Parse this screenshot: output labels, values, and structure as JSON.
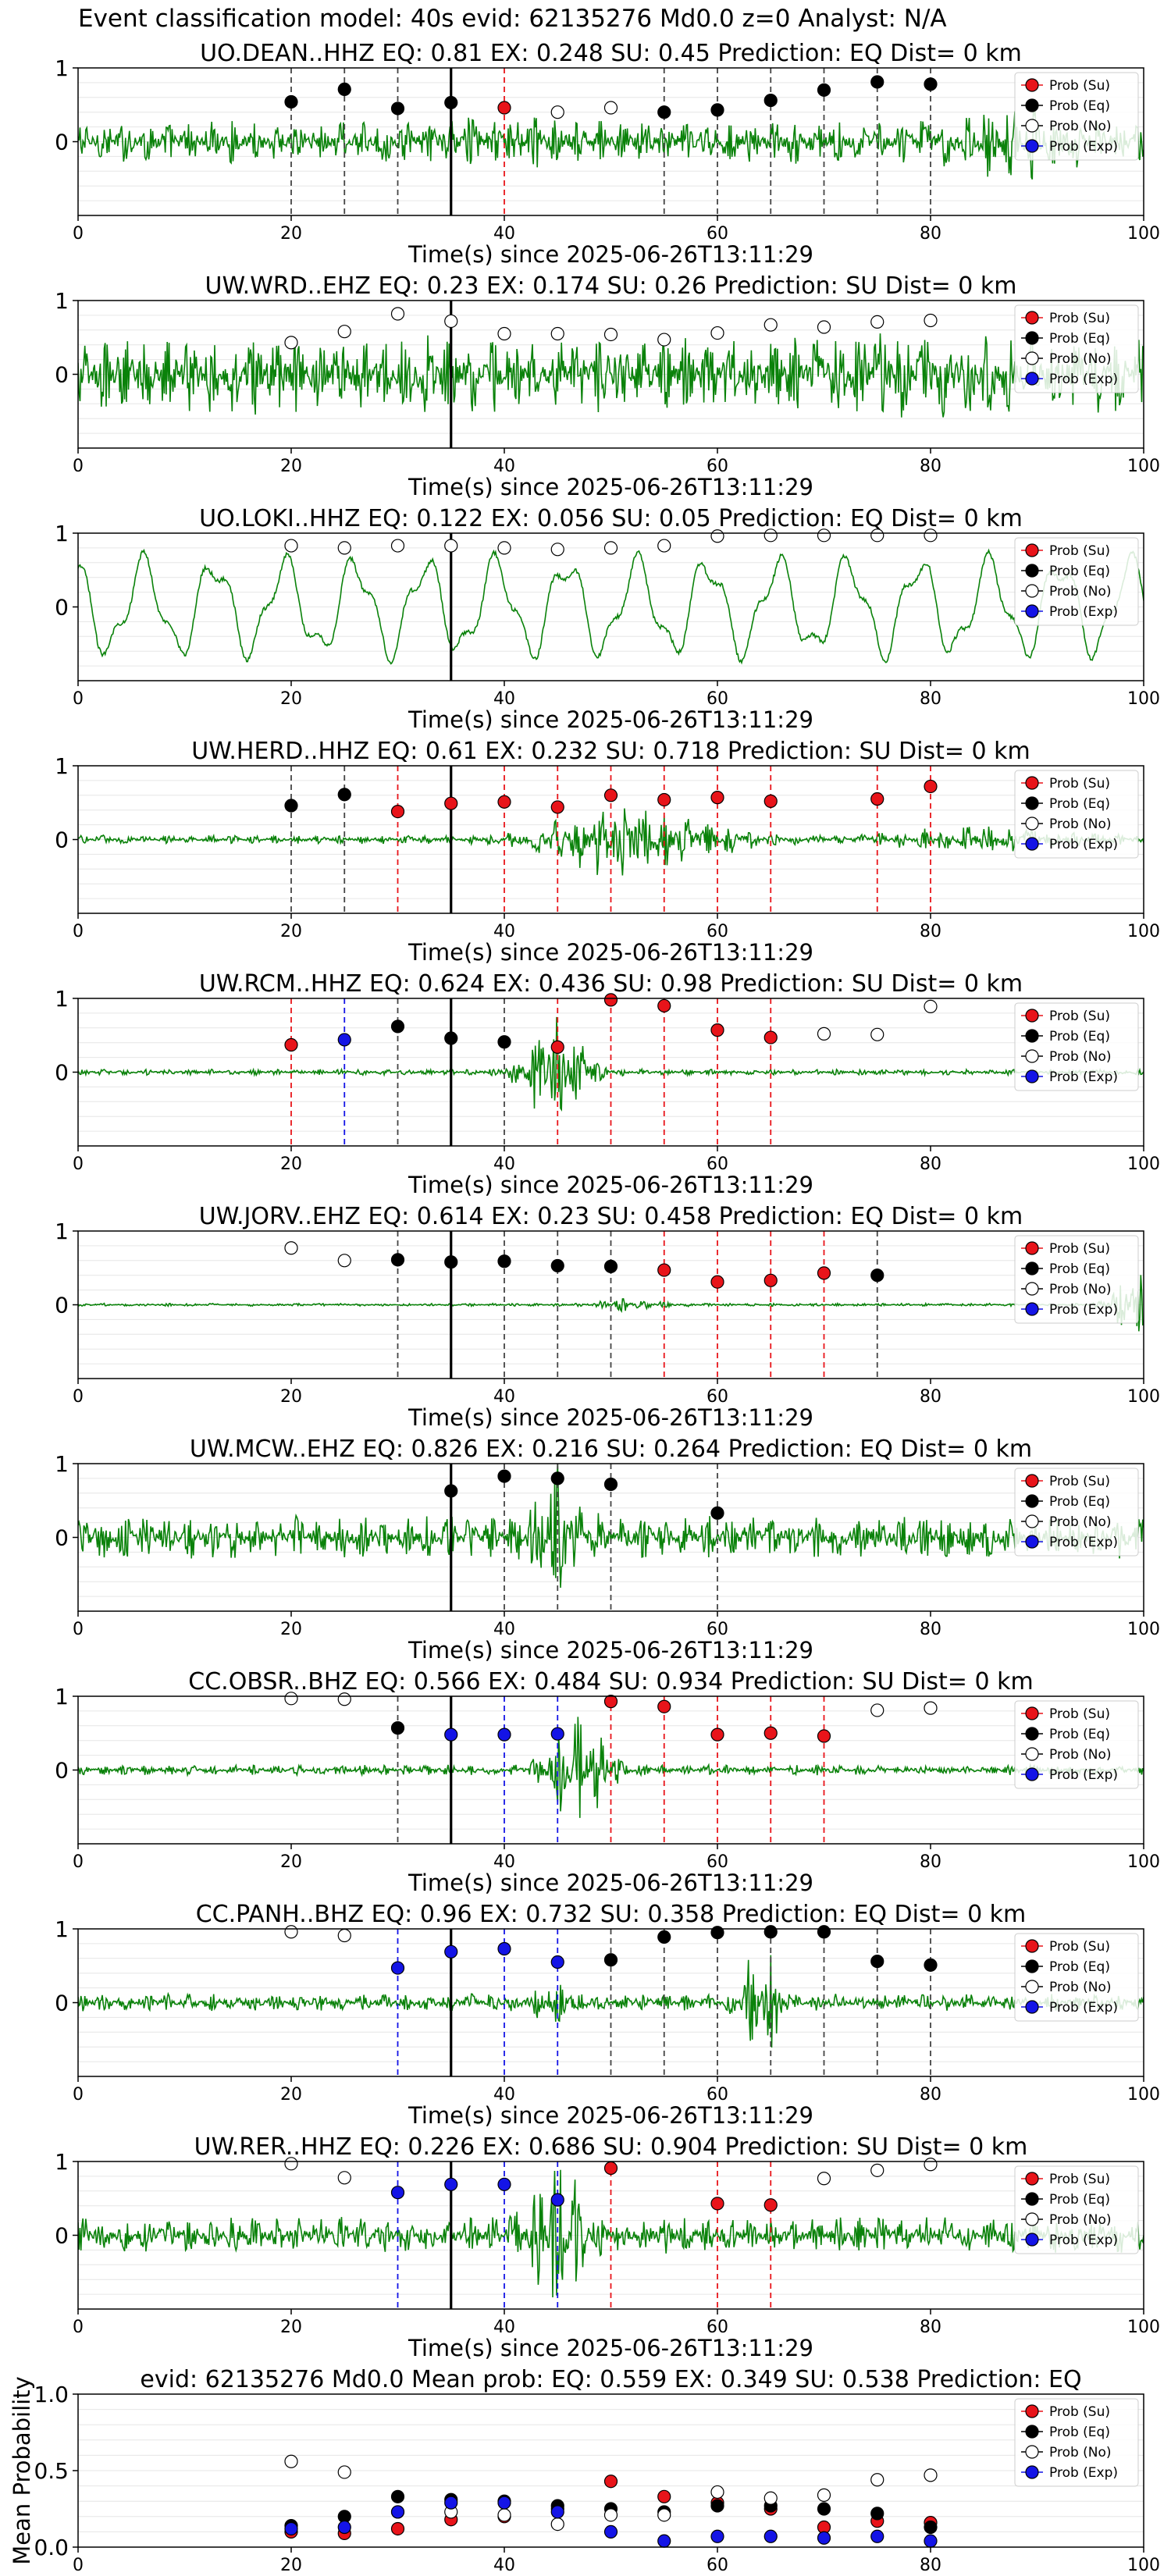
{
  "figure_title": "Event classification model: 40s evid: 62135276 Md0.0 z=0 Analyst: N/A",
  "shared": {
    "xlabel": "Time(s) since 2025-06-26T13:11:29",
    "xticks": [
      "0",
      "20",
      "40",
      "60",
      "80",
      "100"
    ],
    "legend": [
      "Prob (Su)",
      "Prob (Eq)",
      "Prob (No)",
      "Prob (Exp)"
    ],
    "colors": {
      "Su": "#e8141a",
      "Eq": "#000000",
      "No": "#ffffff",
      "Exp": "#1414e6",
      "trace": "#0a820a"
    }
  },
  "chart_data": [
    {
      "type": "scatter",
      "title": "UO.DEAN..HHZ   EQ: 0.81   EX: 0.248   SU: 0.45    Prediction: EQ    Dist= 0 km",
      "xlim": [
        0,
        100
      ],
      "ylim": [
        -1,
        1
      ],
      "yticks": [
        "1",
        "0"
      ],
      "marker_time": 35,
      "trace_style": "noisy_high",
      "points": [
        [
          20,
          0.54,
          "Eq"
        ],
        [
          25,
          0.71,
          "Eq"
        ],
        [
          30,
          0.45,
          "Eq"
        ],
        [
          35,
          0.53,
          "Eq"
        ],
        [
          40,
          0.46,
          "Su"
        ],
        [
          45,
          0.4,
          "No"
        ],
        [
          50,
          0.46,
          "No"
        ],
        [
          55,
          0.4,
          "Eq"
        ],
        [
          60,
          0.43,
          "Eq"
        ],
        [
          65,
          0.56,
          "Eq"
        ],
        [
          70,
          0.7,
          "Eq"
        ],
        [
          75,
          0.81,
          "Eq"
        ],
        [
          80,
          0.78,
          "Eq"
        ]
      ]
    },
    {
      "type": "scatter",
      "title": "UW.WRD..EHZ   EQ: 0.23   EX: 0.174   SU: 0.26    Prediction: SU    Dist= 0 km",
      "xlim": [
        0,
        100
      ],
      "ylim": [
        -1,
        1
      ],
      "yticks": [
        "1",
        "0"
      ],
      "marker_time": 35,
      "trace_style": "dense_noise",
      "points": [
        [
          20,
          0.43,
          "No"
        ],
        [
          25,
          0.58,
          "No"
        ],
        [
          30,
          0.82,
          "No"
        ],
        [
          35,
          0.72,
          "No"
        ],
        [
          40,
          0.55,
          "No"
        ],
        [
          45,
          0.55,
          "No"
        ],
        [
          50,
          0.54,
          "No"
        ],
        [
          55,
          0.47,
          "No"
        ],
        [
          60,
          0.56,
          "No"
        ],
        [
          65,
          0.67,
          "No"
        ],
        [
          70,
          0.64,
          "No"
        ],
        [
          75,
          0.71,
          "No"
        ],
        [
          80,
          0.73,
          "No"
        ]
      ]
    },
    {
      "type": "scatter",
      "title": "UO.LOKI..HHZ   EQ: 0.122   EX: 0.056   SU: 0.05    Prediction: EQ    Dist= 0 km",
      "xlim": [
        0,
        100
      ],
      "ylim": [
        -1,
        1
      ],
      "yticks": [
        "1",
        "0"
      ],
      "marker_time": 35,
      "trace_style": "long_period",
      "points": [
        [
          20,
          0.83,
          "No"
        ],
        [
          25,
          0.8,
          "No"
        ],
        [
          30,
          0.83,
          "No"
        ],
        [
          35,
          0.83,
          "No"
        ],
        [
          40,
          0.8,
          "No"
        ],
        [
          45,
          0.78,
          "No"
        ],
        [
          50,
          0.8,
          "No"
        ],
        [
          55,
          0.83,
          "No"
        ],
        [
          60,
          0.96,
          "No"
        ],
        [
          65,
          0.97,
          "No"
        ],
        [
          70,
          0.97,
          "No"
        ],
        [
          75,
          0.97,
          "No"
        ],
        [
          80,
          0.97,
          "No"
        ]
      ]
    },
    {
      "type": "scatter",
      "title": "UW.HERD..HHZ   EQ: 0.61   EX: 0.232   SU: 0.718    Prediction: SU    Dist= 0 km",
      "xlim": [
        0,
        100
      ],
      "ylim": [
        -1,
        1
      ],
      "yticks": [
        "1",
        "0"
      ],
      "marker_time": 35,
      "trace_style": "event_long",
      "points": [
        [
          20,
          0.46,
          "Eq"
        ],
        [
          25,
          0.61,
          "Eq"
        ],
        [
          30,
          0.38,
          "Su"
        ],
        [
          35,
          0.49,
          "Su"
        ],
        [
          40,
          0.51,
          "Su"
        ],
        [
          45,
          0.44,
          "Su"
        ],
        [
          50,
          0.6,
          "Su"
        ],
        [
          55,
          0.54,
          "Su"
        ],
        [
          60,
          0.57,
          "Su"
        ],
        [
          65,
          0.52,
          "Su"
        ],
        [
          75,
          0.55,
          "Su"
        ],
        [
          80,
          0.72,
          "Su"
        ]
      ]
    },
    {
      "type": "scatter",
      "title": "UW.RCM..HHZ   EQ: 0.624   EX: 0.436   SU: 0.98    Prediction: SU    Dist= 0 km",
      "xlim": [
        0,
        100
      ],
      "ylim": [
        -1,
        1
      ],
      "yticks": [
        "1",
        "0"
      ],
      "marker_time": 35,
      "trace_style": "burst_45",
      "points": [
        [
          20,
          0.37,
          "Su"
        ],
        [
          25,
          0.44,
          "Exp"
        ],
        [
          30,
          0.62,
          "Eq"
        ],
        [
          35,
          0.46,
          "Eq"
        ],
        [
          40,
          0.41,
          "Eq"
        ],
        [
          45,
          0.34,
          "Su"
        ],
        [
          50,
          0.98,
          "Su"
        ],
        [
          55,
          0.9,
          "Su"
        ],
        [
          60,
          0.57,
          "Su"
        ],
        [
          65,
          0.47,
          "Su"
        ],
        [
          70,
          0.52,
          "No"
        ],
        [
          75,
          0.51,
          "No"
        ],
        [
          80,
          0.89,
          "No"
        ]
      ]
    },
    {
      "type": "scatter",
      "title": "UW.JORV..EHZ   EQ: 0.614   EX: 0.23   SU: 0.458    Prediction: EQ    Dist= 0 km",
      "xlim": [
        0,
        100
      ],
      "ylim": [
        -1,
        1
      ],
      "yticks": [
        "1",
        "0"
      ],
      "marker_time": 35,
      "trace_style": "quiet_end",
      "points": [
        [
          20,
          0.77,
          "No"
        ],
        [
          25,
          0.6,
          "No"
        ],
        [
          30,
          0.61,
          "Eq"
        ],
        [
          35,
          0.58,
          "Eq"
        ],
        [
          40,
          0.59,
          "Eq"
        ],
        [
          45,
          0.53,
          "Eq"
        ],
        [
          50,
          0.52,
          "Eq"
        ],
        [
          55,
          0.47,
          "Su"
        ],
        [
          60,
          0.31,
          "Su"
        ],
        [
          65,
          0.33,
          "Su"
        ],
        [
          70,
          0.43,
          "Su"
        ],
        [
          75,
          0.4,
          "Eq"
        ]
      ]
    },
    {
      "type": "scatter",
      "title": "UW.MCW..EHZ   EQ: 0.826   EX: 0.216   SU: 0.264    Prediction: EQ    Dist= 0 km",
      "xlim": [
        0,
        100
      ],
      "ylim": [
        -1,
        1
      ],
      "yticks": [
        "1",
        "0"
      ],
      "marker_time": 35,
      "trace_style": "noisy_burst_45",
      "points": [
        [
          35,
          0.63,
          "Eq"
        ],
        [
          40,
          0.83,
          "Eq"
        ],
        [
          45,
          0.8,
          "Eq"
        ],
        [
          50,
          0.72,
          "Eq"
        ],
        [
          60,
          0.33,
          "Eq"
        ]
      ]
    },
    {
      "type": "scatter",
      "title": "CC.OBSR..BHZ   EQ: 0.566   EX: 0.484   SU: 0.934    Prediction: SU    Dist= 0 km",
      "xlim": [
        0,
        100
      ],
      "ylim": [
        -1,
        1
      ],
      "yticks": [
        "1",
        "0"
      ],
      "marker_time": 35,
      "trace_style": "burst_47",
      "points": [
        [
          20,
          0.97,
          "No"
        ],
        [
          25,
          0.96,
          "No"
        ],
        [
          30,
          0.57,
          "Eq"
        ],
        [
          35,
          0.48,
          "Exp"
        ],
        [
          40,
          0.48,
          "Exp"
        ],
        [
          45,
          0.49,
          "Exp"
        ],
        [
          50,
          0.93,
          "Su"
        ],
        [
          55,
          0.86,
          "Su"
        ],
        [
          60,
          0.48,
          "Su"
        ],
        [
          65,
          0.5,
          "Su"
        ],
        [
          70,
          0.46,
          "Su"
        ],
        [
          75,
          0.81,
          "No"
        ],
        [
          80,
          0.84,
          "No"
        ]
      ]
    },
    {
      "type": "scatter",
      "title": "CC.PANH..BHZ   EQ: 0.96   EX: 0.732   SU: 0.358    Prediction: EQ    Dist= 0 km",
      "xlim": [
        0,
        100
      ],
      "ylim": [
        -1,
        1
      ],
      "yticks": [
        "1",
        "0"
      ],
      "marker_time": 35,
      "trace_style": "burst_64",
      "points": [
        [
          20,
          0.96,
          "No"
        ],
        [
          25,
          0.91,
          "No"
        ],
        [
          30,
          0.47,
          "Exp"
        ],
        [
          35,
          0.69,
          "Exp"
        ],
        [
          40,
          0.73,
          "Exp"
        ],
        [
          45,
          0.55,
          "Exp"
        ],
        [
          50,
          0.58,
          "Eq"
        ],
        [
          55,
          0.89,
          "Eq"
        ],
        [
          60,
          0.95,
          "Eq"
        ],
        [
          65,
          0.96,
          "Eq"
        ],
        [
          70,
          0.96,
          "Eq"
        ],
        [
          75,
          0.56,
          "Eq"
        ],
        [
          80,
          0.51,
          "Eq"
        ]
      ]
    },
    {
      "type": "scatter",
      "title": "UW.RER..HHZ   EQ: 0.226   EX: 0.686   SU: 0.904    Prediction: SU    Dist= 0 km",
      "xlim": [
        0,
        100
      ],
      "ylim": [
        -1,
        1
      ],
      "yticks": [
        "1",
        "0"
      ],
      "marker_time": 35,
      "trace_style": "burst_45_tall",
      "points": [
        [
          20,
          0.97,
          "No"
        ],
        [
          25,
          0.78,
          "No"
        ],
        [
          30,
          0.58,
          "Exp"
        ],
        [
          35,
          0.69,
          "Exp"
        ],
        [
          40,
          0.69,
          "Exp"
        ],
        [
          45,
          0.48,
          "Exp"
        ],
        [
          50,
          0.91,
          "Su"
        ],
        [
          60,
          0.43,
          "Su"
        ],
        [
          65,
          0.41,
          "Su"
        ],
        [
          70,
          0.77,
          "No"
        ],
        [
          75,
          0.88,
          "No"
        ],
        [
          80,
          0.96,
          "No"
        ]
      ]
    },
    {
      "type": "scatter",
      "title": "evid: 62135276  Md0.0   Mean prob:   EQ: 0.559  EX: 0.349  SU: 0.538   Prediction: EQ",
      "ylabel": "Mean Probability",
      "xlim": [
        0,
        100
      ],
      "ylim": [
        0,
        1
      ],
      "yticks": [
        "1.0",
        "0.5",
        "0.0"
      ],
      "points": [
        [
          20,
          0.1,
          "Su"
        ],
        [
          20,
          0.14,
          "Eq"
        ],
        [
          20,
          0.56,
          "No"
        ],
        [
          20,
          0.12,
          "Exp"
        ],
        [
          25,
          0.09,
          "Su"
        ],
        [
          25,
          0.2,
          "Eq"
        ],
        [
          25,
          0.49,
          "No"
        ],
        [
          25,
          0.13,
          "Exp"
        ],
        [
          30,
          0.12,
          "Su"
        ],
        [
          30,
          0.33,
          "Eq"
        ],
        [
          30,
          0.23,
          "No"
        ],
        [
          30,
          0.23,
          "Exp"
        ],
        [
          35,
          0.18,
          "Su"
        ],
        [
          35,
          0.31,
          "Eq"
        ],
        [
          35,
          0.23,
          "No"
        ],
        [
          35,
          0.29,
          "Exp"
        ],
        [
          40,
          0.2,
          "Su"
        ],
        [
          40,
          0.3,
          "Eq"
        ],
        [
          40,
          0.21,
          "No"
        ],
        [
          40,
          0.29,
          "Exp"
        ],
        [
          45,
          0.25,
          "Su"
        ],
        [
          45,
          0.27,
          "Eq"
        ],
        [
          45,
          0.15,
          "No"
        ],
        [
          45,
          0.23,
          "Exp"
        ],
        [
          50,
          0.43,
          "Su"
        ],
        [
          50,
          0.25,
          "Eq"
        ],
        [
          50,
          0.21,
          "No"
        ],
        [
          50,
          0.1,
          "Exp"
        ],
        [
          55,
          0.33,
          "Su"
        ],
        [
          55,
          0.23,
          "Eq"
        ],
        [
          55,
          0.21,
          "No"
        ],
        [
          55,
          0.04,
          "Exp"
        ],
        [
          60,
          0.29,
          "Su"
        ],
        [
          60,
          0.27,
          "Eq"
        ],
        [
          60,
          0.36,
          "No"
        ],
        [
          60,
          0.07,
          "Exp"
        ],
        [
          65,
          0.25,
          "Su"
        ],
        [
          65,
          0.27,
          "Eq"
        ],
        [
          65,
          0.32,
          "No"
        ],
        [
          65,
          0.07,
          "Exp"
        ],
        [
          70,
          0.13,
          "Su"
        ],
        [
          70,
          0.25,
          "Eq"
        ],
        [
          70,
          0.34,
          "No"
        ],
        [
          70,
          0.06,
          "Exp"
        ],
        [
          75,
          0.17,
          "Su"
        ],
        [
          75,
          0.22,
          "Eq"
        ],
        [
          75,
          0.44,
          "No"
        ],
        [
          75,
          0.07,
          "Exp"
        ],
        [
          80,
          0.16,
          "Su"
        ],
        [
          80,
          0.13,
          "Eq"
        ],
        [
          80,
          0.47,
          "No"
        ],
        [
          80,
          0.04,
          "Exp"
        ]
      ]
    }
  ]
}
